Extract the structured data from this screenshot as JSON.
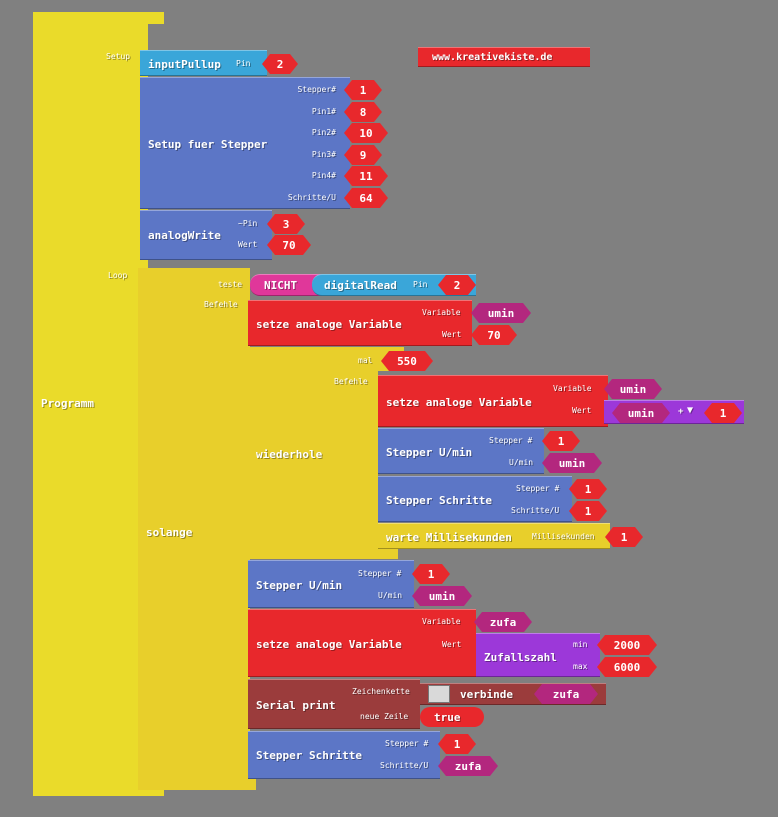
{
  "program": {
    "label": "Programm",
    "setup_label": "Setup",
    "loop_label": "Loop"
  },
  "website": "www.kreativekiste.de",
  "setup": {
    "input_pullup": {
      "label": "inputPullup",
      "pin_label": "Pin",
      "pin": "2"
    },
    "stepper_setup": {
      "label": "Setup fuer Stepper",
      "params": [
        {
          "name": "Stepper#",
          "value": "1"
        },
        {
          "name": "Pin1#",
          "value": "8"
        },
        {
          "name": "Pin2#",
          "value": "10"
        },
        {
          "name": "Pin3#",
          "value": "9"
        },
        {
          "name": "Pin4#",
          "value": "11"
        },
        {
          "name": "Schritte/U",
          "value": "64"
        }
      ]
    },
    "analog_write": {
      "label": "analogWrite",
      "pin_label": "~Pin",
      "pin": "3",
      "wert_label": "Wert",
      "wert": "70"
    }
  },
  "loop": {
    "while": {
      "label": "solange",
      "test_label": "teste",
      "befehle_label": "Befehle",
      "not_label": "NICHT",
      "digital_read_label": "digitalRead",
      "pin_label": "Pin",
      "pin": "2"
    },
    "set_var1": {
      "label": "setze analoge Variable",
      "var_label": "Variable",
      "var": "umin",
      "wert_label": "Wert",
      "wert": "70"
    },
    "repeat": {
      "label": "wiederhole",
      "mal_label": "mal",
      "times": "550",
      "befehle_label": "Befehle"
    },
    "set_var2": {
      "label": "setze analoge Variable",
      "var_label": "Variable",
      "var": "umin",
      "wert_label": "Wert",
      "expr_var": "umin",
      "expr_op": "+",
      "expr_op_arrow": "▼",
      "expr_val": "1"
    },
    "stepper_umin1": {
      "label": "Stepper U/min",
      "stepper_label": "Stepper #",
      "stepper": "1",
      "umin_label": "U/min",
      "umin": "umin"
    },
    "stepper_steps1": {
      "label": "Stepper Schritte",
      "stepper_label": "Stepper #",
      "stepper": "1",
      "steps_label": "Schritte/U",
      "steps": "1"
    },
    "wait": {
      "label": "warte Millisekunden",
      "ms_label": "Millisekunden",
      "ms": "1"
    },
    "stepper_umin2": {
      "label": "Stepper U/min",
      "stepper_label": "Stepper #",
      "stepper": "1",
      "umin_label": "U/min",
      "umin": "umin"
    },
    "set_var3": {
      "label": "setze analoge Variable",
      "var_label": "Variable",
      "var": "zufa",
      "wert_label": "Wert",
      "random_label": "Zufallszahl",
      "min_label": "min",
      "min": "2000",
      "max_label": "max",
      "max": "6000"
    },
    "serial_print": {
      "label": "Serial print",
      "chars_label": "Zeichenkette",
      "join_label": "verbinde",
      "join_var": "zufa",
      "newline_label": "neue Zeile",
      "newline": "true"
    },
    "stepper_steps2": {
      "label": "Stepper Schritte",
      "stepper_label": "Stepper #",
      "stepper": "1",
      "steps_label": "Schritte/U",
      "steps": "zufa"
    }
  }
}
